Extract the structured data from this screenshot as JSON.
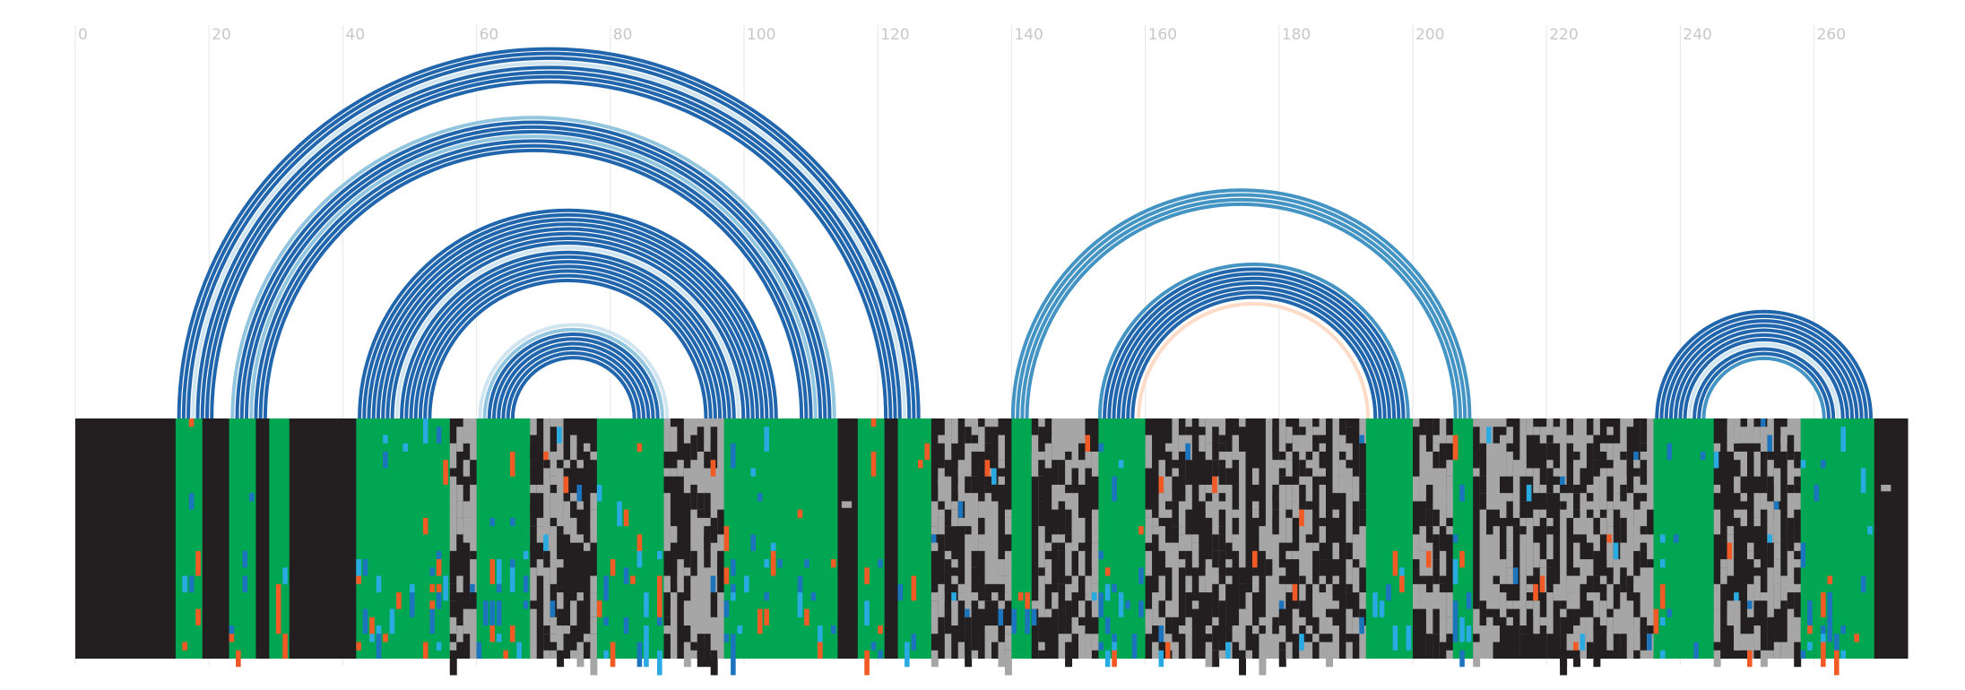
{
  "chart_data": {
    "type": "arc-diagram-with-alignment",
    "xlim": [
      0,
      273
    ],
    "x_ticks": [
      0,
      20,
      40,
      60,
      80,
      100,
      120,
      140,
      160,
      180,
      200,
      220,
      240,
      260
    ],
    "grid": true,
    "colors": {
      "arc_dark": "#2166ac",
      "arc_mid": "#4393c3",
      "arc_light": "#92c5de",
      "arc_pale": "#d1e5f0",
      "arc_peach": "#fddbc7",
      "gap": "#231f20",
      "mismatch": "#a6a6a6",
      "match": "#00a651",
      "variant_orange": "#f15a24",
      "variant_blue": "#1c75bc",
      "variant_cyan": "#29abe2"
    },
    "arc_groups": [
      {
        "left": [
          15.5,
          16.2,
          16.9,
          17.6,
          18.3,
          19.0,
          19.7,
          20.4
        ],
        "right": [
          126.1,
          125.4,
          124.7,
          124.0,
          123.3,
          122.6,
          121.9,
          121.2
        ],
        "shades": [
          "dark",
          "dark",
          "dark",
          "pale",
          "dark",
          "dark",
          "dark",
          "dark"
        ]
      },
      {
        "left": [
          23.5,
          24.2,
          24.9,
          25.6,
          26.3,
          27.0,
          27.7,
          28.4
        ],
        "right": [
          113.5,
          112.8,
          112.1,
          111.4,
          110.7,
          110.0,
          109.3,
          108.6
        ],
        "shades": [
          "light",
          "dark",
          "dark",
          "dark",
          "light",
          "dark",
          "dark",
          "dark"
        ]
      },
      {
        "left": [
          42.5,
          43.2,
          43.9,
          44.6,
          45.3,
          46.0,
          46.7,
          47.4,
          48.1,
          48.8,
          49.5,
          50.2,
          50.9,
          51.6,
          52.3,
          53.0
        ],
        "right": [
          104.8,
          104.1,
          103.4,
          102.7,
          102.0,
          101.3,
          100.6,
          99.9,
          99.2,
          98.5,
          97.8,
          97.1,
          96.4,
          95.7,
          95.0,
          94.3
        ],
        "shades": [
          "dark",
          "dark",
          "dark",
          "dark",
          "dark",
          "dark",
          "dark",
          "dark",
          "pale",
          "dark",
          "dark",
          "dark",
          "dark",
          "dark",
          "dark",
          "dark"
        ]
      },
      {
        "left": [
          60.5,
          61.2,
          61.9,
          62.6,
          63.3,
          64.0,
          64.7,
          65.4
        ],
        "right": [
          88.5,
          87.8,
          87.1,
          86.4,
          85.7,
          85.0,
          84.3,
          83.6
        ],
        "shades": [
          "pale",
          "light",
          "dark",
          "dark",
          "dark",
          "dark",
          "dark",
          "dark"
        ]
      },
      {
        "left": [
          140.2,
          140.9,
          141.6,
          142.3
        ],
        "right": [
          208.5,
          207.8,
          207.1,
          206.4
        ],
        "shades": [
          "mid",
          "mid",
          "mid",
          "mid"
        ]
      },
      {
        "left": [
          153.2,
          153.9,
          154.6,
          155.3,
          156.0,
          156.7,
          157.4,
          158.1,
          159.0
        ],
        "right": [
          199.3,
          198.6,
          197.9,
          197.2,
          196.5,
          195.8,
          195.1,
          194.4,
          193.3
        ],
        "shades": [
          "mid",
          "dark",
          "dark",
          "dark",
          "dark",
          "dark",
          "dark",
          "dark",
          "peach"
        ]
      },
      {
        "left": [
          236.5,
          237.2,
          237.9,
          238.6,
          239.3,
          240.0,
          240.7,
          241.4,
          242.1,
          242.8,
          243.5
        ],
        "right": [
          268.5,
          267.8,
          267.1,
          266.4,
          265.7,
          265.0,
          264.3,
          263.6,
          262.9,
          262.2,
          261.5
        ],
        "shades": [
          "dark",
          "dark",
          "dark",
          "dark",
          "dark",
          "dark",
          "dark",
          "pale",
          "dark",
          "dark",
          "mid"
        ]
      }
    ],
    "alignment_segments": [
      {
        "start": 0,
        "end": 15,
        "kind": "gap"
      },
      {
        "start": 15,
        "end": 19,
        "kind": "match"
      },
      {
        "start": 19,
        "end": 23,
        "kind": "gap"
      },
      {
        "start": 23,
        "end": 27,
        "kind": "match"
      },
      {
        "start": 27,
        "end": 29,
        "kind": "gap"
      },
      {
        "start": 29,
        "end": 32,
        "kind": "match"
      },
      {
        "start": 32,
        "end": 42,
        "kind": "gap"
      },
      {
        "start": 42,
        "end": 56,
        "kind": "match"
      },
      {
        "start": 56,
        "end": 60,
        "kind": "mixed"
      },
      {
        "start": 60,
        "end": 68,
        "kind": "match"
      },
      {
        "start": 68,
        "end": 78,
        "kind": "mixed"
      },
      {
        "start": 78,
        "end": 88,
        "kind": "match"
      },
      {
        "start": 88,
        "end": 97,
        "kind": "mixed"
      },
      {
        "start": 97,
        "end": 105,
        "kind": "match"
      },
      {
        "start": 105,
        "end": 114,
        "kind": "match"
      },
      {
        "start": 114,
        "end": 117,
        "kind": "gap"
      },
      {
        "start": 117,
        "end": 121,
        "kind": "match"
      },
      {
        "start": 121,
        "end": 123,
        "kind": "gap"
      },
      {
        "start": 123,
        "end": 128,
        "kind": "match"
      },
      {
        "start": 128,
        "end": 140,
        "kind": "mixed"
      },
      {
        "start": 140,
        "end": 143,
        "kind": "match"
      },
      {
        "start": 143,
        "end": 153,
        "kind": "mixed"
      },
      {
        "start": 153,
        "end": 160,
        "kind": "match"
      },
      {
        "start": 160,
        "end": 193,
        "kind": "mixed"
      },
      {
        "start": 193,
        "end": 200,
        "kind": "match"
      },
      {
        "start": 200,
        "end": 206,
        "kind": "mixed"
      },
      {
        "start": 206,
        "end": 209,
        "kind": "match"
      },
      {
        "start": 209,
        "end": 236,
        "kind": "mixed"
      },
      {
        "start": 236,
        "end": 245,
        "kind": "match"
      },
      {
        "start": 245,
        "end": 258,
        "kind": "mixed"
      },
      {
        "start": 258,
        "end": 269,
        "kind": "match"
      },
      {
        "start": 269,
        "end": 274,
        "kind": "gap"
      }
    ]
  }
}
